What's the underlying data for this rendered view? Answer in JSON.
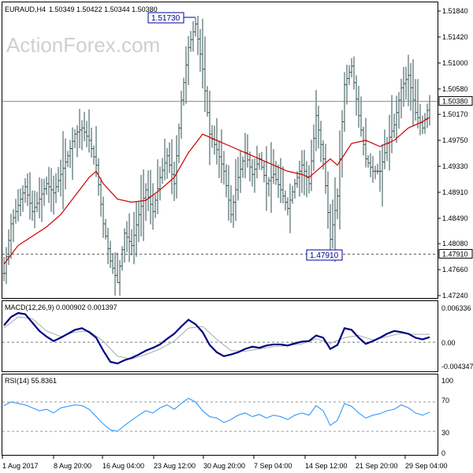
{
  "header": {
    "symbol_label": "EURAUD,H4",
    "ohlc_label": "1.50349 1.50422 1.50344 1.50380"
  },
  "watermark": "ActionForex.com",
  "chart_data": [
    {
      "type": "ohlc",
      "title": "EURAUD,H4  1.50349 1.50422 1.50344 1.50380",
      "ylim": [
        1.4724,
        1.5184
      ],
      "y_ticks": [
        "1.51840",
        "1.51420",
        "1.51000",
        "1.50580",
        "1.50170",
        "1.49750",
        "1.49330",
        "1.48910",
        "1.48490",
        "1.48080",
        "1.47660",
        "1.47240"
      ],
      "x_ticks": [
        "1 Aug 2017",
        "8 Aug 20:00",
        "16 Aug 04:00",
        "23 Aug 12:00",
        "30 Aug 20:00",
        "7 Sep 04:00",
        "14 Sep 12:00",
        "21 Sep 20:00",
        "29 Sep 04:00"
      ],
      "current_price_label": "1.50380",
      "current_price": 1.5038,
      "support_label": "1.47910",
      "support_level": 1.4791,
      "annotations": [
        {
          "text": "1.51730",
          "value": 1.5173
        },
        {
          "text": "1.47910",
          "value": 1.4791
        }
      ],
      "grid": false,
      "colors": {
        "bars": "#2f4f4f",
        "ma": "#cc0000"
      },
      "close_path": [
        [
          0,
          1.476
        ],
        [
          6,
          1.484
        ],
        [
          12,
          1.487
        ],
        [
          18,
          1.49
        ],
        [
          24,
          1.486
        ],
        [
          30,
          1.488
        ],
        [
          36,
          1.4905
        ],
        [
          42,
          1.489
        ],
        [
          48,
          1.492
        ],
        [
          54,
          1.495
        ],
        [
          60,
          1.4985
        ],
        [
          66,
          1.4995
        ],
        [
          72,
          1.4975
        ],
        [
          78,
          1.4935
        ],
        [
          84,
          1.484
        ],
        [
          90,
          1.478
        ],
        [
          96,
          1.4745
        ],
        [
          102,
          1.4825
        ],
        [
          108,
          1.4805
        ],
        [
          114,
          1.4855
        ],
        [
          120,
          1.4895
        ],
        [
          126,
          1.486
        ],
        [
          132,
          1.4915
        ],
        [
          138,
          1.495
        ],
        [
          144,
          1.4905
        ],
        [
          150,
          1.504
        ],
        [
          156,
          1.5125
        ],
        [
          162,
          1.5163
        ],
        [
          168,
          1.509
        ],
        [
          174,
          1.4985
        ],
        [
          180,
          1.496
        ],
        [
          186,
          1.4925
        ],
        [
          192,
          1.4855
        ],
        [
          198,
          1.4915
        ],
        [
          204,
          1.4955
        ],
        [
          210,
          1.492
        ],
        [
          216,
          1.4945
        ],
        [
          222,
          1.4905
        ],
        [
          228,
          1.492
        ],
        [
          234,
          1.4895
        ],
        [
          240,
          1.4865
        ],
        [
          246,
          1.4905
        ],
        [
          252,
          1.4935
        ],
        [
          258,
          1.4905
        ],
        [
          264,
          1.5015
        ],
        [
          270,
          1.4945
        ],
        [
          276,
          1.4815
        ],
        [
          282,
          1.4885
        ],
        [
          288,
          1.5065
        ],
        [
          294,
          1.5095
        ],
        [
          300,
          1.5015
        ],
        [
          306,
          1.4945
        ],
        [
          312,
          1.4925
        ],
        [
          318,
          1.4925
        ],
        [
          324,
          1.497
        ],
        [
          330,
          1.5
        ],
        [
          336,
          1.506
        ],
        [
          342,
          1.508
        ],
        [
          348,
          1.502
        ],
        [
          354,
          1.4995
        ],
        [
          360,
          1.5038
        ]
      ],
      "ma_path": [
        [
          0,
          1.4775
        ],
        [
          12,
          1.4805
        ],
        [
          24,
          1.482
        ],
        [
          36,
          1.4835
        ],
        [
          48,
          1.4855
        ],
        [
          60,
          1.4885
        ],
        [
          72,
          1.4915
        ],
        [
          78,
          1.4925
        ],
        [
          84,
          1.4905
        ],
        [
          96,
          1.488
        ],
        [
          108,
          1.4875
        ],
        [
          120,
          1.4878
        ],
        [
          132,
          1.4895
        ],
        [
          144,
          1.4915
        ],
        [
          156,
          1.4955
        ],
        [
          168,
          1.4985
        ],
        [
          180,
          1.4975
        ],
        [
          192,
          1.4965
        ],
        [
          204,
          1.4955
        ],
        [
          216,
          1.4945
        ],
        [
          228,
          1.4935
        ],
        [
          240,
          1.4925
        ],
        [
          252,
          1.492
        ],
        [
          258,
          1.4915
        ],
        [
          270,
          1.4935
        ],
        [
          276,
          1.4945
        ],
        [
          282,
          1.4935
        ],
        [
          294,
          1.497
        ],
        [
          306,
          1.4975
        ],
        [
          318,
          1.4965
        ],
        [
          330,
          1.4975
        ],
        [
          342,
          1.4995
        ],
        [
          354,
          1.5005
        ],
        [
          360,
          1.5012
        ]
      ]
    },
    {
      "type": "line",
      "title": "MACD(12,26,9) 0.000902 0.001397",
      "ylim": [
        -0.004347,
        0.006336
      ],
      "y_ticks": [
        "0.006336",
        "0.00",
        "-0.004347"
      ],
      "zero_line": 0.0,
      "colors": {
        "macd": "#000080",
        "signal": "#aaaaaa"
      },
      "series": [
        {
          "name": "MACD(12,26,9)",
          "value": "0.000902",
          "points": [
            [
              0,
              0.003
            ],
            [
              6,
              0.0045
            ],
            [
              12,
              0.0052
            ],
            [
              18,
              0.005
            ],
            [
              24,
              0.0035
            ],
            [
              30,
              0.002
            ],
            [
              36,
              0.001
            ],
            [
              42,
              0.0002
            ],
            [
              48,
              0.0008
            ],
            [
              54,
              0.0015
            ],
            [
              60,
              0.0022
            ],
            [
              66,
              0.0025
            ],
            [
              72,
              0.0018
            ],
            [
              78,
              0.0008
            ],
            [
              84,
              -0.0015
            ],
            [
              90,
              -0.0035
            ],
            [
              96,
              -0.0038
            ],
            [
              102,
              -0.0032
            ],
            [
              108,
              -0.0028
            ],
            [
              114,
              -0.0022
            ],
            [
              120,
              -0.0015
            ],
            [
              126,
              -0.001
            ],
            [
              132,
              -0.0004
            ],
            [
              138,
              0.0006
            ],
            [
              144,
              0.0015
            ],
            [
              150,
              0.0028
            ],
            [
              156,
              0.004
            ],
            [
              162,
              0.0032
            ],
            [
              168,
              0.0018
            ],
            [
              174,
              -0.0005
            ],
            [
              180,
              -0.0018
            ],
            [
              186,
              -0.0025
            ],
            [
              192,
              -0.0022
            ],
            [
              198,
              -0.0018
            ],
            [
              204,
              -0.0012
            ],
            [
              210,
              -0.0008
            ],
            [
              216,
              -0.001
            ],
            [
              222,
              -0.0006
            ],
            [
              228,
              -0.0004
            ],
            [
              234,
              -0.0004
            ],
            [
              240,
              -0.0006
            ],
            [
              246,
              -0.0002
            ],
            [
              252,
              0.0001
            ],
            [
              258,
              0.0002
            ],
            [
              264,
              0.0012
            ],
            [
              270,
              0.0008
            ],
            [
              276,
              -0.0012
            ],
            [
              282,
              -0.0005
            ],
            [
              288,
              0.0025
            ],
            [
              294,
              0.0022
            ],
            [
              300,
              0.0008
            ],
            [
              306,
              -0.0003
            ],
            [
              312,
              0.0002
            ],
            [
              318,
              0.0008
            ],
            [
              324,
              0.0015
            ],
            [
              330,
              0.002
            ],
            [
              336,
              0.0018
            ],
            [
              342,
              0.0015
            ],
            [
              348,
              0.0008
            ],
            [
              354,
              0.0005
            ],
            [
              360,
              0.0009
            ]
          ]
        },
        {
          "name": "signal",
          "value": "0.001397",
          "points": [
            [
              0,
              0.0025
            ],
            [
              12,
              0.0045
            ],
            [
              24,
              0.0042
            ],
            [
              36,
              0.002
            ],
            [
              48,
              0.001
            ],
            [
              60,
              0.0018
            ],
            [
              72,
              0.002
            ],
            [
              84,
              0.0002
            ],
            [
              96,
              -0.0025
            ],
            [
              108,
              -0.003
            ],
            [
              120,
              -0.0022
            ],
            [
              132,
              -0.0012
            ],
            [
              144,
              0.0002
            ],
            [
              156,
              0.0025
            ],
            [
              168,
              0.0028
            ],
            [
              180,
              0.0005
            ],
            [
              192,
              -0.0015
            ],
            [
              204,
              -0.0016
            ],
            [
              216,
              -0.0012
            ],
            [
              228,
              -0.0008
            ],
            [
              240,
              -0.0006
            ],
            [
              252,
              -0.0003
            ],
            [
              264,
              0.0006
            ],
            [
              276,
              -0.0002
            ],
            [
              288,
              0.0008
            ],
            [
              300,
              0.0012
            ],
            [
              312,
              0.0004
            ],
            [
              324,
              0.001
            ],
            [
              336,
              0.0016
            ],
            [
              348,
              0.0014
            ],
            [
              360,
              0.0014
            ]
          ]
        }
      ]
    },
    {
      "type": "line",
      "title": "RSI(14) 55.8361",
      "ylim": [
        0,
        100
      ],
      "y_ticks": [
        "100",
        "70",
        "30",
        "0"
      ],
      "levels": [
        70,
        30
      ],
      "colors": {
        "rsi": "#1e90ff"
      },
      "series": [
        {
          "name": "RSI(14)",
          "value": "55.8361",
          "points": [
            [
              0,
              65
            ],
            [
              6,
              70
            ],
            [
              12,
              68
            ],
            [
              18,
              66
            ],
            [
              24,
              62
            ],
            [
              30,
              58
            ],
            [
              36,
              60
            ],
            [
              42,
              55
            ],
            [
              48,
              62
            ],
            [
              54,
              64
            ],
            [
              60,
              66
            ],
            [
              66,
              65
            ],
            [
              72,
              60
            ],
            [
              78,
              50
            ],
            [
              84,
              40
            ],
            [
              90,
              32
            ],
            [
              96,
              30
            ],
            [
              102,
              38
            ],
            [
              108,
              45
            ],
            [
              114,
              52
            ],
            [
              120,
              58
            ],
            [
              126,
              55
            ],
            [
              132,
              62
            ],
            [
              138,
              66
            ],
            [
              144,
              60
            ],
            [
              150,
              68
            ],
            [
              156,
              75
            ],
            [
              162,
              70
            ],
            [
              168,
              58
            ],
            [
              174,
              50
            ],
            [
              180,
              48
            ],
            [
              186,
              42
            ],
            [
              192,
              46
            ],
            [
              198,
              52
            ],
            [
              204,
              55
            ],
            [
              210,
              50
            ],
            [
              216,
              53
            ],
            [
              222,
              48
            ],
            [
              228,
              52
            ],
            [
              234,
              50
            ],
            [
              240,
              46
            ],
            [
              246,
              52
            ],
            [
              252,
              55
            ],
            [
              258,
              52
            ],
            [
              264,
              65
            ],
            [
              270,
              58
            ],
            [
              276,
              38
            ],
            [
              282,
              45
            ],
            [
              288,
              68
            ],
            [
              294,
              64
            ],
            [
              300,
              55
            ],
            [
              306,
              48
            ],
            [
              312,
              52
            ],
            [
              318,
              54
            ],
            [
              324,
              58
            ],
            [
              330,
              60
            ],
            [
              336,
              66
            ],
            [
              342,
              62
            ],
            [
              348,
              55
            ],
            [
              354,
              52
            ],
            [
              360,
              56
            ]
          ]
        }
      ]
    }
  ]
}
